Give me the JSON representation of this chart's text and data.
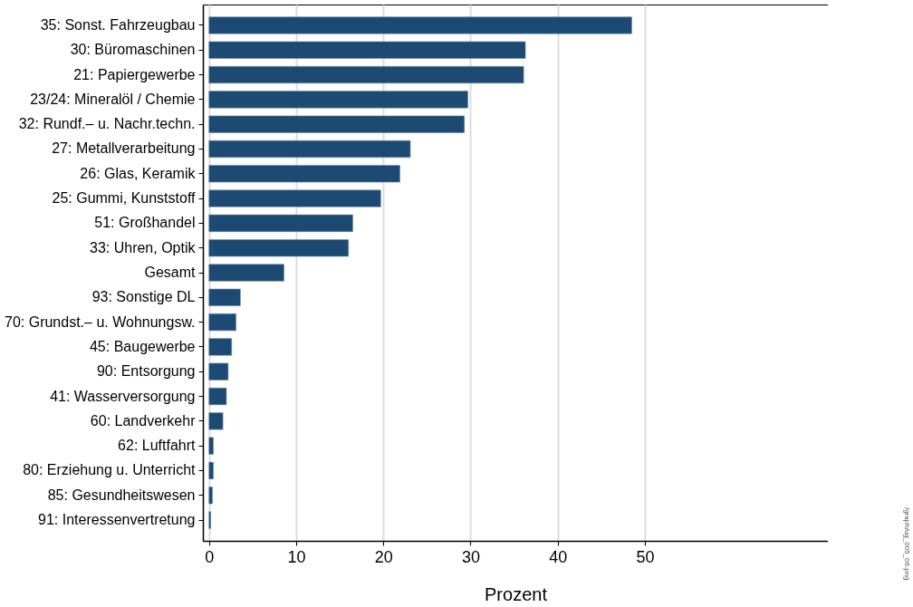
{
  "chart_data": {
    "type": "bar",
    "orientation": "horizontal",
    "xlabel": "Prozent",
    "categories": [
      "35: Sonst. Fahrzeugbau",
      "30: Büromaschinen",
      "21: Papiergewerbe",
      "23/24: Mineralöl / Chemie",
      "32: Rundf.– u. Nachr.techn.",
      "27: Metallverarbeitung",
      "26: Glas, Keramik",
      "25: Gummi, Kunststoff",
      "51: Großhandel",
      "33: Uhren, Optik",
      "Gesamt",
      "93: Sonstige DL",
      "70: Grundst.– u. Wohnungsw.",
      "45: Baugewerbe",
      "90: Entsorgung",
      "41: Wasserversorgung",
      "60: Landverkehr",
      "62: Luftfahrt",
      "80: Erziehung u. Unterricht",
      "85: Gesundheitswesen",
      "91: Interessenvertretung"
    ],
    "values": [
      48.5,
      36.3,
      36.1,
      29.7,
      29.3,
      23.1,
      21.9,
      19.7,
      16.5,
      16.0,
      8.6,
      3.6,
      3.1,
      2.6,
      2.2,
      2.0,
      1.6,
      0.5,
      0.5,
      0.4,
      0.2
    ],
    "color": "#1c4a72",
    "xlim": [
      -0.7,
      71
    ],
    "xticks": [
      0,
      10,
      20,
      30,
      40,
      50
    ],
    "grid": "x",
    "annotations": [
      "/graph/ug_005_06.png"
    ]
  }
}
